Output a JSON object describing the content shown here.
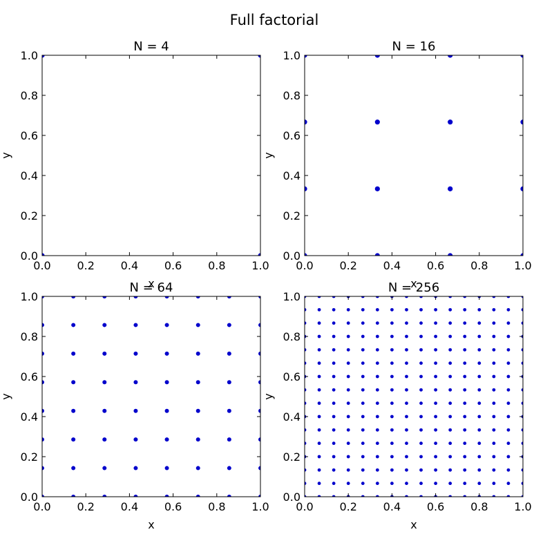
{
  "figure": {
    "suptitle": "Full factorial",
    "marker_color": "#0000cc"
  },
  "chart_data": [
    {
      "type": "scatter",
      "title": "N = 4",
      "xlabel": "x",
      "ylabel": "y",
      "xlim": [
        0,
        1
      ],
      "ylim": [
        0,
        1
      ],
      "xticks": [
        "0.0",
        "0.2",
        "0.4",
        "0.6",
        "0.8",
        "1.0"
      ],
      "yticks": [
        "0.0",
        "0.2",
        "0.4",
        "0.6",
        "0.8",
        "1.0"
      ],
      "grid": false,
      "levels": [
        0,
        1
      ]
    },
    {
      "type": "scatter",
      "title": "N = 16",
      "xlabel": "x",
      "ylabel": "y",
      "xlim": [
        0,
        1
      ],
      "ylim": [
        0,
        1
      ],
      "xticks": [
        "0.0",
        "0.2",
        "0.4",
        "0.6",
        "0.8",
        "1.0"
      ],
      "yticks": [
        "0.0",
        "0.2",
        "0.4",
        "0.6",
        "0.8",
        "1.0"
      ],
      "grid": false,
      "levels": [
        0,
        0.3333,
        0.6667,
        1
      ]
    },
    {
      "type": "scatter",
      "title": "N = 64",
      "xlabel": "x",
      "ylabel": "y",
      "xlim": [
        0,
        1
      ],
      "ylim": [
        0,
        1
      ],
      "xticks": [
        "0.0",
        "0.2",
        "0.4",
        "0.6",
        "0.8",
        "1.0"
      ],
      "yticks": [
        "0.0",
        "0.2",
        "0.4",
        "0.6",
        "0.8",
        "1.0"
      ],
      "grid": false,
      "levels": [
        0,
        0.1429,
        0.2857,
        0.4286,
        0.5714,
        0.7143,
        0.8571,
        1
      ]
    },
    {
      "type": "scatter",
      "title": "N = 256",
      "xlabel": "x",
      "ylabel": "y",
      "xlim": [
        0,
        1
      ],
      "ylim": [
        0,
        1
      ],
      "xticks": [
        "0.0",
        "0.2",
        "0.4",
        "0.6",
        "0.8",
        "1.0"
      ],
      "yticks": [
        "0.0",
        "0.2",
        "0.4",
        "0.6",
        "0.8",
        "1.0"
      ],
      "grid": false,
      "levels": [
        0,
        0.0667,
        0.1333,
        0.2,
        0.2667,
        0.3333,
        0.4,
        0.4667,
        0.5333,
        0.6,
        0.6667,
        0.7333,
        0.8,
        0.8667,
        0.9333,
        1
      ]
    }
  ]
}
